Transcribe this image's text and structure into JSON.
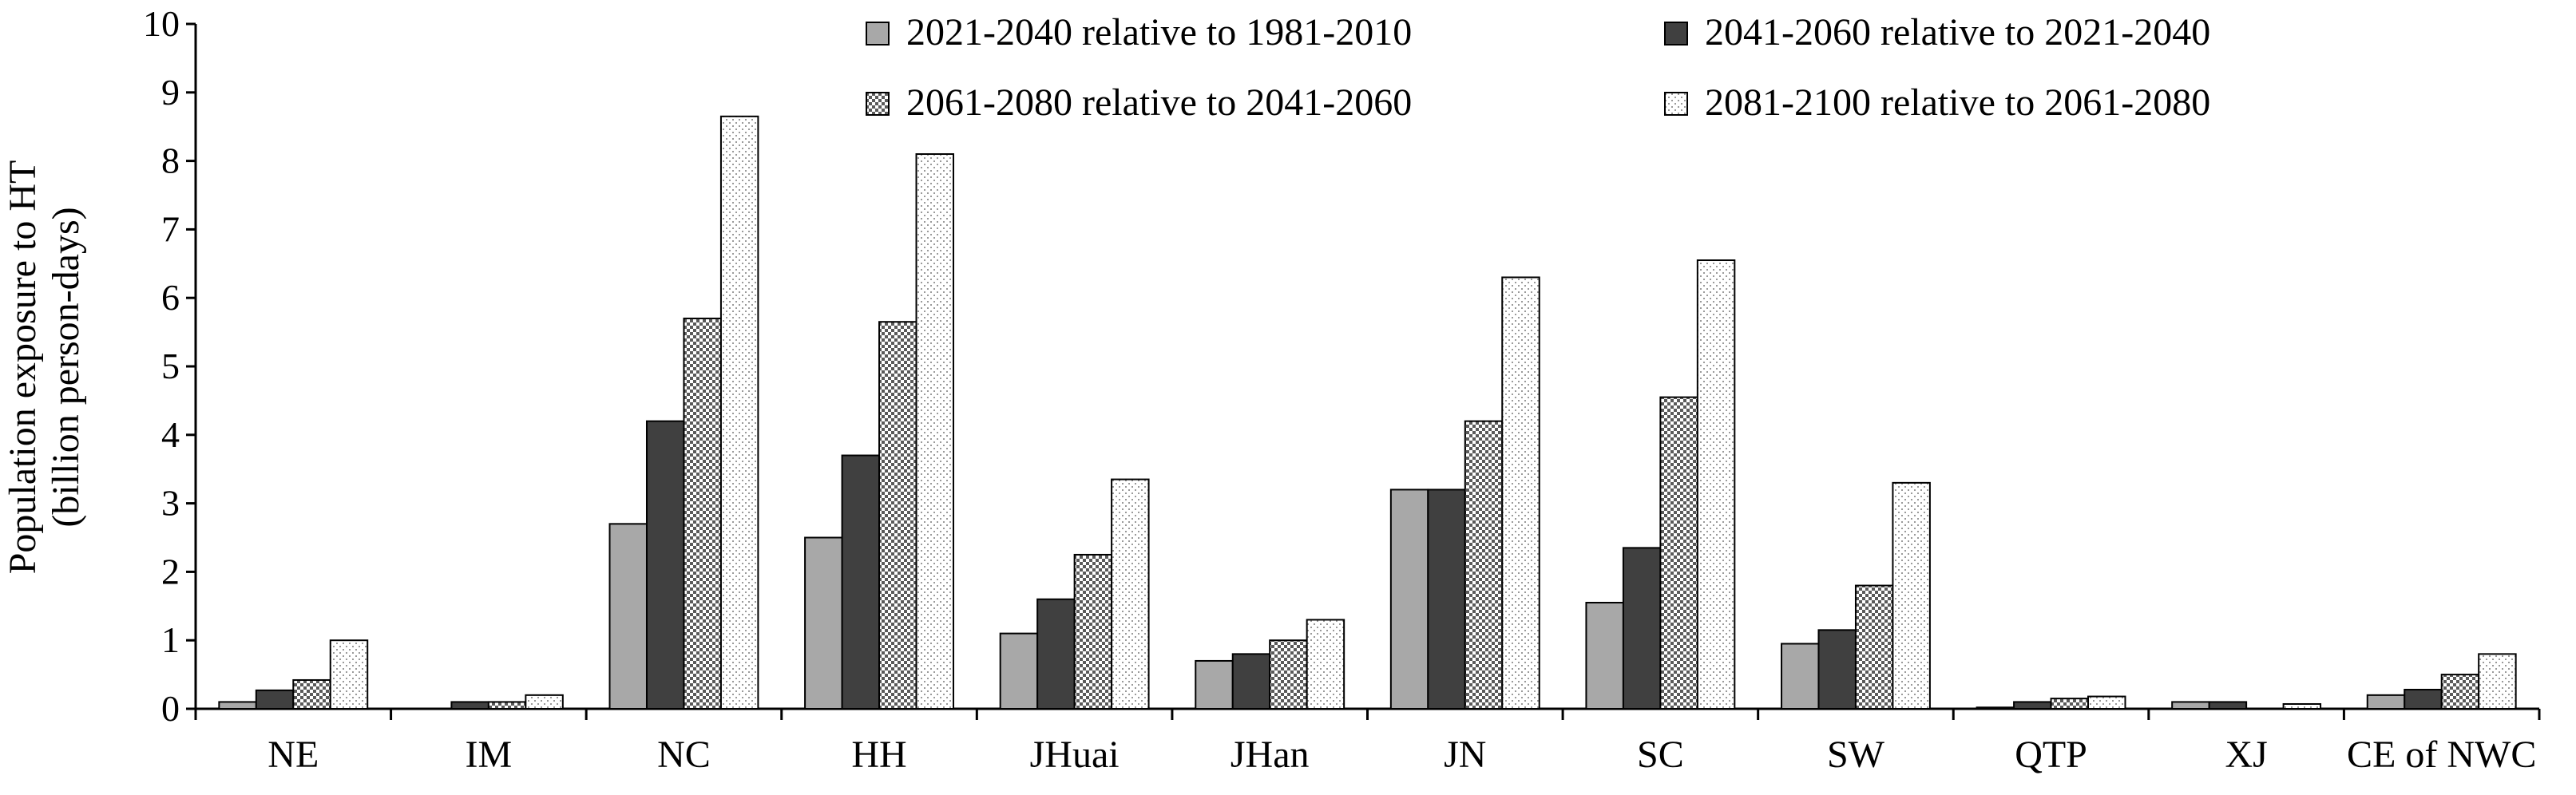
{
  "chart_data": {
    "type": "bar",
    "title": "",
    "xlabel": "",
    "ylabel_lines": [
      "Population exposure to HT",
      "(billion person-days)"
    ],
    "ylim": [
      0,
      10
    ],
    "yticks": [
      "0",
      "1",
      "2",
      "3",
      "4",
      "5",
      "6",
      "7",
      "8",
      "9",
      "10"
    ],
    "grid": false,
    "legend_position": "top-right",
    "categories": [
      "NE",
      "IM",
      "NC",
      "HH",
      "JHuai",
      "JHan",
      "JN",
      "SC",
      "SW",
      "QTP",
      "XJ",
      "CE of NWC"
    ],
    "series": [
      {
        "name": "2021-2040 relative to 1981-2010",
        "pattern": "solid-gray",
        "color": "#a8a8a8",
        "values": [
          0.1,
          0.0,
          2.7,
          2.5,
          1.1,
          0.7,
          3.2,
          1.55,
          0.95,
          0.02,
          0.1,
          0.2
        ]
      },
      {
        "name": "2041-2060 relative to 2021-2040",
        "pattern": "solid-dark",
        "color": "#404040",
        "values": [
          0.27,
          0.1,
          4.2,
          3.7,
          1.6,
          0.8,
          3.2,
          2.35,
          1.15,
          0.1,
          0.1,
          0.28
        ]
      },
      {
        "name": "2061-2080 relative to 2041-2060",
        "pattern": "crosshatch",
        "color": "#9a9a9a",
        "values": [
          0.42,
          0.1,
          5.7,
          5.65,
          2.25,
          1.0,
          4.2,
          4.55,
          1.8,
          0.15,
          0.0,
          0.5
        ]
      },
      {
        "name": "2081-2100 relative to 2061-2080",
        "pattern": "dotted",
        "color": "#d8d8d8",
        "values": [
          1.0,
          0.2,
          8.65,
          8.1,
          3.35,
          1.3,
          6.3,
          6.55,
          3.3,
          0.18,
          0.07,
          0.8
        ]
      }
    ]
  }
}
